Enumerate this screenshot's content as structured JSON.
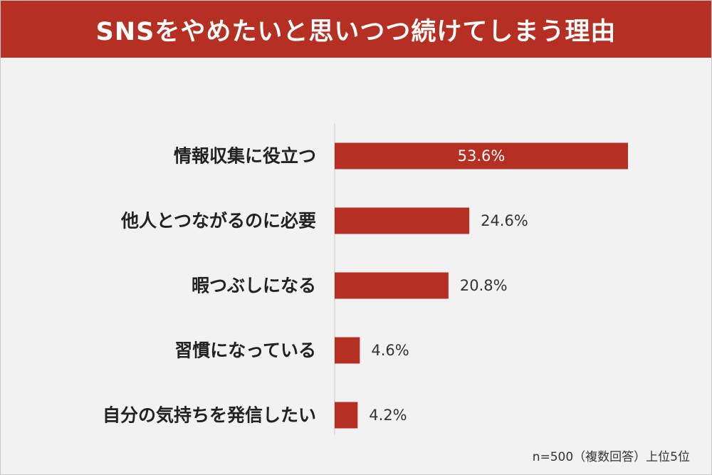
{
  "title": "SNSをやめたいと思いつつ続けてしまう理由",
  "footnote": "n=500（複数回答）上位5位",
  "colors": {
    "header": "#b52f22",
    "bar": "#b52f22",
    "background": "#f2f2f2",
    "axis": "#c8c8c8"
  },
  "chart_data": {
    "type": "bar",
    "orientation": "horizontal",
    "categories": [
      "情報収集に役立つ",
      "他人とつながるのに必要",
      "暇つぶしになる",
      "習慣になっている",
      "自分の気持ちを発信したい"
    ],
    "values": [
      53.6,
      24.6,
      20.8,
      4.6,
      4.2
    ],
    "value_labels": [
      "53.6%",
      "24.6%",
      "20.8%",
      "4.6%",
      "4.2%"
    ],
    "unit": "%",
    "xlim": [
      0,
      53.6
    ],
    "grid": false,
    "legend": "none"
  }
}
